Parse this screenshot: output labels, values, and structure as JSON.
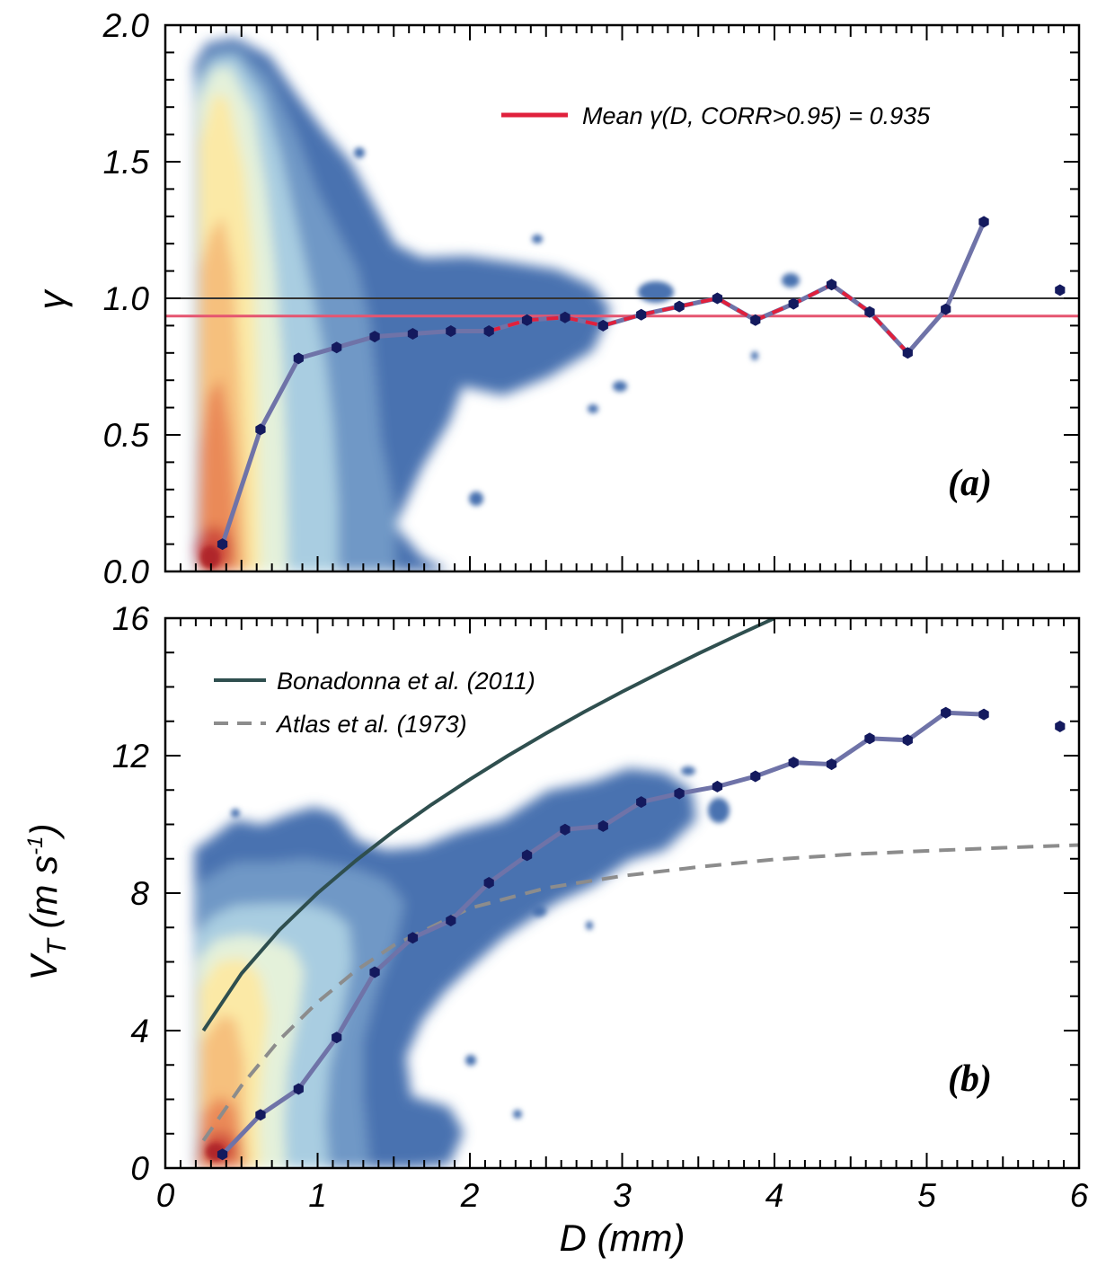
{
  "chart_data": [
    {
      "type": "scatter",
      "panel_label": "(a)",
      "xlabel": "D (mm)",
      "ylabel": "γ",
      "xlim": [
        0,
        6
      ],
      "ylim": [
        0,
        2.0
      ],
      "x_ticks": [
        "0",
        "1",
        "2",
        "3",
        "4",
        "5",
        "6"
      ],
      "y_ticks": [
        "0.0",
        "0.5",
        "1.0",
        "1.5",
        "2.0"
      ],
      "colors": {
        "density_low": "#4a72b0",
        "density_high": "#c0262d",
        "binned_line": "#6f73a8",
        "markers": "#141a5e",
        "mean_line": "#e0203c",
        "reference_line": "#333333"
      },
      "series": [
        {
          "role": "binned_mean",
          "x": [
            0.375,
            0.625,
            0.875,
            1.125,
            1.375,
            1.625,
            1.875,
            2.125,
            2.375,
            2.625,
            2.875,
            3.125,
            3.375,
            3.625,
            3.875,
            4.125,
            4.375,
            4.625,
            4.875,
            5.125,
            5.375,
            5.875
          ],
          "y": [
            0.1,
            0.52,
            0.78,
            0.82,
            0.86,
            0.87,
            0.88,
            0.88,
            0.92,
            0.93,
            0.9,
            0.94,
            0.97,
            1.0,
            0.92,
            0.98,
            1.05,
            0.95,
            0.8,
            0.96,
            1.28,
            1.03
          ]
        },
        {
          "name": "Mean γ(D, CORR>0.95) = 0.935",
          "role": "corr_subset",
          "x": [
            2.125,
            2.375,
            2.625,
            2.875,
            3.125,
            3.375,
            3.625,
            3.875,
            4.125,
            4.375,
            4.625,
            4.875
          ],
          "y": [
            0.88,
            0.92,
            0.93,
            0.9,
            0.94,
            0.97,
            1.0,
            0.92,
            0.98,
            1.05,
            0.95,
            0.8
          ]
        }
      ],
      "mean_value": 0.935,
      "reference_value": 1.0,
      "legend": [
        "Mean γ(D, CORR>0.95) = 0.935"
      ],
      "legend_position": "top-right",
      "grid": false
    },
    {
      "type": "scatter",
      "panel_label": "(b)",
      "xlabel": "D (mm)",
      "ylabel": "V_T (m s^-1)",
      "xlim": [
        0,
        6
      ],
      "ylim": [
        0,
        16
      ],
      "x_ticks": [
        "0",
        "1",
        "2",
        "3",
        "4",
        "5",
        "6"
      ],
      "y_ticks": [
        "0",
        "4",
        "8",
        "12",
        "16"
      ],
      "colors": {
        "bonadonna": "#2f4f4f",
        "atlas": "#8c8c8c",
        "binned_line": "#6f73a8",
        "markers": "#141a5e"
      },
      "series": [
        {
          "role": "binned_mean",
          "x": [
            0.375,
            0.625,
            0.875,
            1.125,
            1.375,
            1.625,
            1.875,
            2.125,
            2.375,
            2.625,
            2.875,
            3.125,
            3.375,
            3.625,
            3.875,
            4.125,
            4.375,
            4.625,
            4.875,
            5.125,
            5.375,
            5.875
          ],
          "y": [
            0.4,
            1.55,
            2.3,
            3.8,
            5.7,
            6.7,
            7.2,
            8.3,
            9.1,
            9.85,
            9.95,
            10.65,
            10.9,
            11.1,
            11.4,
            11.8,
            11.75,
            12.5,
            12.45,
            13.25,
            13.2,
            12.85
          ]
        },
        {
          "name": "Bonadonna et al. (2011)",
          "role": "model",
          "x": [
            0.25,
            0.5,
            0.75,
            1.0,
            1.25,
            1.5,
            1.75,
            2.0,
            2.25,
            2.5,
            2.75,
            3.0,
            3.25,
            3.5,
            3.75,
            4.0
          ],
          "y": [
            4.0,
            5.66,
            6.93,
            8.0,
            8.94,
            9.8,
            10.58,
            11.31,
            12.0,
            12.65,
            13.27,
            13.86,
            14.42,
            14.97,
            15.49,
            16.0
          ]
        },
        {
          "name": "Atlas et al. (1973)",
          "role": "model",
          "x": [
            0.25,
            0.5,
            0.75,
            1.0,
            1.25,
            1.5,
            2.0,
            2.5,
            3.0,
            3.5,
            4.0,
            4.5,
            5.0,
            5.5,
            6.0
          ],
          "y": [
            0.8,
            2.4,
            3.73,
            4.83,
            5.74,
            6.48,
            7.56,
            8.15,
            8.5,
            8.76,
            8.98,
            9.13,
            9.23,
            9.32,
            9.4
          ]
        }
      ],
      "legend": [
        "Bonadonna et al. (2011)",
        "Atlas et al. (1973)"
      ],
      "legend_position": "top-left",
      "grid": false
    }
  ]
}
